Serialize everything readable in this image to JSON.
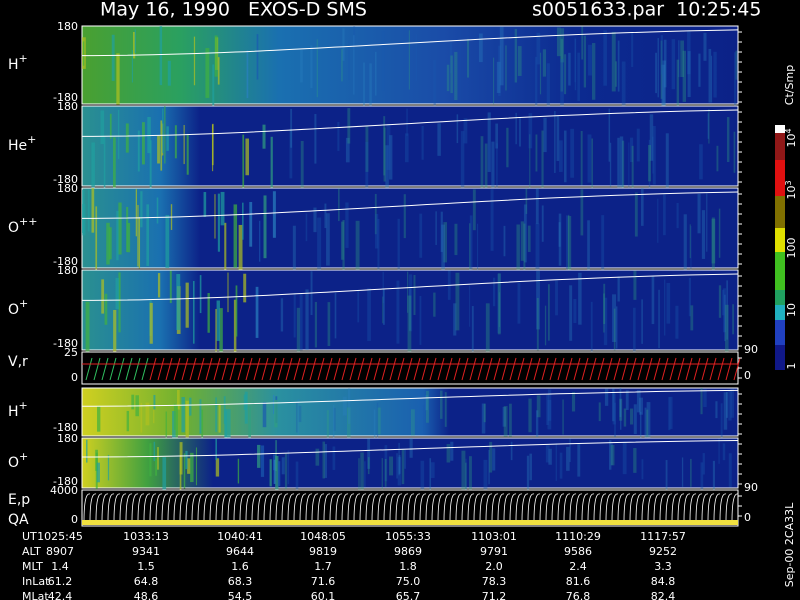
{
  "header": {
    "title": "May 16, 1990   EXOS-D SMS",
    "file": "s0051633.par  10:25:45"
  },
  "panels": [
    {
      "ion": "H",
      "charge": "+",
      "ticks": [
        "180",
        "-180"
      ]
    },
    {
      "ion": "He",
      "charge": "+",
      "ticks": [
        "180",
        "-180"
      ]
    },
    {
      "ion": "O",
      "charge": "++",
      "ticks": [
        "180",
        "-180"
      ]
    },
    {
      "ion": "O",
      "charge": "+",
      "ticks": [
        "180",
        "-180"
      ]
    },
    {
      "ion": "V,r",
      "ticks": [
        "25",
        "0"
      ],
      "right_ticks": [
        "90",
        "0"
      ]
    },
    {
      "ion": "H",
      "charge": "+",
      "ticks": [
        "-180"
      ]
    },
    {
      "ion": "O",
      "charge": "+",
      "ticks": [
        "180",
        "-180"
      ]
    },
    {
      "ion": "E,p",
      "ion2": "QA",
      "ticks": [
        "4000",
        "0"
      ],
      "right_ticks": [
        "90",
        "0"
      ]
    }
  ],
  "colorbar": {
    "unit": "Ct/Smp",
    "ticks": [
      {
        "base": "10",
        "exp": "4"
      },
      {
        "base": "10",
        "exp": "3"
      },
      {
        "base": "100"
      },
      {
        "base": "10"
      },
      {
        "base": "1"
      }
    ]
  },
  "footer": {
    "rows": [
      {
        "label": "UT",
        "values": [
          "1025:45",
          "1033:13",
          "1040:41",
          "1048:05",
          "1055:33",
          "1103:01",
          "1110:29",
          "1117:57"
        ]
      },
      {
        "label": "ALT",
        "values": [
          "8907",
          "9341",
          "9644",
          "9819",
          "9869",
          "9791",
          "9586",
          "9252"
        ]
      },
      {
        "label": "MLT",
        "values": [
          "1.4",
          "1.5",
          "1.6",
          "1.7",
          "1.8",
          "2.0",
          "2.4",
          "3.3"
        ]
      },
      {
        "label": "InLat",
        "values": [
          "61.2",
          "64.8",
          "68.3",
          "71.6",
          "75.0",
          "78.3",
          "81.6",
          "84.8"
        ]
      },
      {
        "label": "MLat",
        "values": [
          "42.4",
          "48.6",
          "54.5",
          "60.1",
          "65.7",
          "71.2",
          "76.8",
          "82.4"
        ]
      }
    ]
  },
  "stamp": "Sep-00 2CA33L"
}
